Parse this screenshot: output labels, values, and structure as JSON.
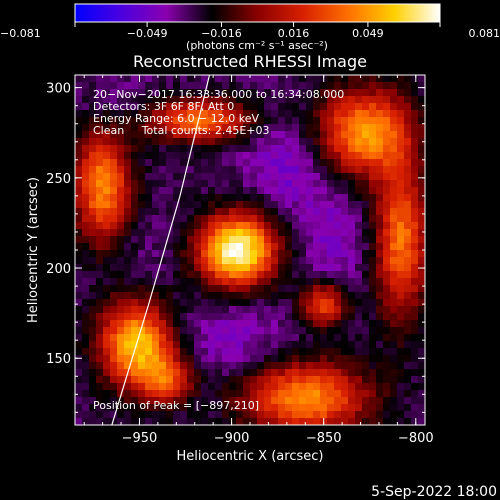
{
  "chart_data": {
    "type": "heatmap",
    "title": "Reconstructed RHESSI Image",
    "xlabel": "Heliocentric X (arcsec)",
    "ylabel": "Heliocentric Y (arcsec)",
    "xlim": [
      -985,
      -795
    ],
    "ylim": [
      113,
      307
    ],
    "x_ticks": [
      -950,
      -900,
      -850,
      -800
    ],
    "x_tick_labels": [
      "−950",
      "−900",
      "−850",
      "−800"
    ],
    "y_ticks": [
      150,
      200,
      250,
      300
    ],
    "y_tick_labels": [
      "150",
      "200",
      "250",
      "300"
    ],
    "colorbar": {
      "range": [
        -0.081,
        0.081
      ],
      "ticks": [
        -0.081,
        -0.049,
        -0.016,
        0.016,
        0.049,
        0.081
      ],
      "tick_labels": [
        "−0.081",
        "−0.049",
        "−0.016",
        "0.016",
        "0.049",
        "0.081"
      ],
      "unit_label": "(photons cm⁻² s⁻¹ asec⁻²)",
      "colors": [
        "#0000ff",
        "#4a00e0",
        "#8a00b0",
        "#000000",
        "#8a0000",
        "#d82000",
        "#ff7000",
        "#ffd000",
        "#ffffff"
      ]
    },
    "annotations": [
      "20−Nov−2017 16:33:36.000 to 16:34:08.000",
      "Detectors: 3F 6F 8F, Att 0",
      "Energy Range: 6.0 − 12.0 keV",
      "Clean     Total counts: 2.45E+03"
    ],
    "peak_label": "Position of Peak = [−897,210]",
    "peak": [
      -897,
      210
    ],
    "limb_line": [
      [
        -965,
        113
      ],
      [
        -945,
        180
      ],
      [
        -928,
        240
      ],
      [
        -912,
        307
      ]
    ],
    "sources": [
      {
        "x": -897,
        "y": 210,
        "value": 0.081,
        "sx": 15,
        "sy": 14
      },
      {
        "x": -952,
        "y": 158,
        "value": 0.06,
        "sx": 14,
        "sy": 17
      },
      {
        "x": -970,
        "y": 245,
        "value": 0.045,
        "sx": 11,
        "sy": 22
      },
      {
        "x": -918,
        "y": 282,
        "value": 0.042,
        "sx": 20,
        "sy": 8
      },
      {
        "x": -828,
        "y": 275,
        "value": 0.05,
        "sx": 18,
        "sy": 17
      },
      {
        "x": -808,
        "y": 215,
        "value": 0.04,
        "sx": 10,
        "sy": 30
      },
      {
        "x": -860,
        "y": 128,
        "value": 0.048,
        "sx": 24,
        "sy": 14
      },
      {
        "x": -850,
        "y": 180,
        "value": 0.03,
        "sx": 9,
        "sy": 9
      },
      {
        "x": -935,
        "y": 138,
        "value": 0.02,
        "sx": 10,
        "sy": 10
      },
      {
        "x": -868,
        "y": 258,
        "value": -0.05,
        "sx": 16,
        "sy": 18
      },
      {
        "x": -900,
        "y": 160,
        "value": -0.045,
        "sx": 22,
        "sy": 16
      },
      {
        "x": -845,
        "y": 215,
        "value": -0.045,
        "sx": 14,
        "sy": 22
      },
      {
        "x": -950,
        "y": 205,
        "value": -0.035,
        "sx": 14,
        "sy": 18
      },
      {
        "x": -960,
        "y": 290,
        "value": -0.04,
        "sx": 14,
        "sy": 10
      },
      {
        "x": -812,
        "y": 150,
        "value": -0.03,
        "sx": 14,
        "sy": 12
      }
    ],
    "background_value": -0.03
  },
  "footer": {
    "date": "5-Sep-2022 18:00"
  }
}
